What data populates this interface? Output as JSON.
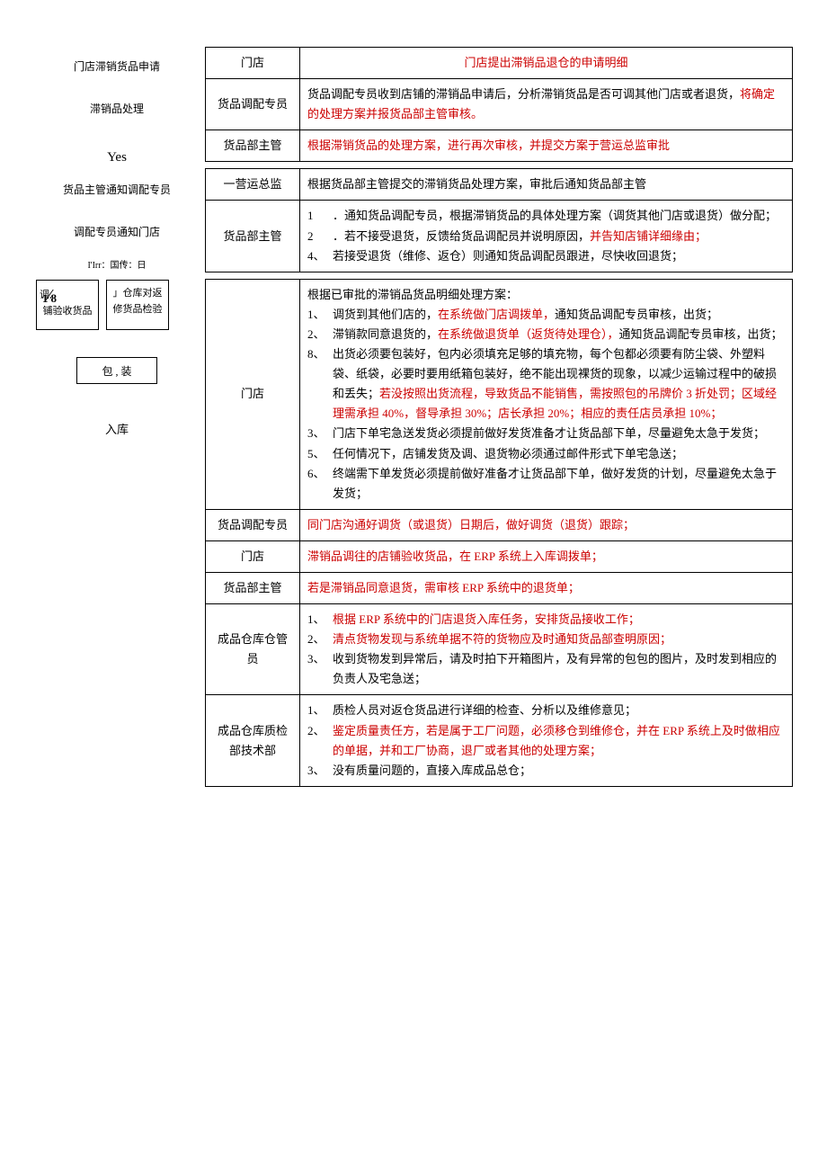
{
  "left": {
    "l1": "门店滞销货品申请",
    "l2": "滞销品处理",
    "yes": "Yes",
    "l3": "货品主管通知调配专员",
    "l4": "调配专员通知门店",
    "l5": "I'Irr：国传：日",
    "box1a": "调,",
    "box1b": "铺验收货品",
    "frac_n": "1",
    "frac_d": "8",
    "box2a": "」仓库对返",
    "box2b": "修货品检验",
    "box3": "包   , 装",
    "last": "入库"
  },
  "rows": [
    {
      "role": "门店",
      "center": true,
      "segs": [
        {
          "t": "门店提出滞销品退仓的申请明细",
          "c": "red"
        }
      ]
    },
    {
      "role": "货品调配专员",
      "segs": [
        {
          "t": "货品调配专员收到店铺的滞销品申请后，分析滞销货品是否可调其他门店或者退货，"
        },
        {
          "t": "将确定的处理方案并报货品部主管审核。",
          "c": "red"
        }
      ]
    },
    {
      "role": "货品部主管",
      "segs": [
        {
          "t": "根据滞销货品的处理方案，进行再次审核，并提交方案于营运总监审批",
          "c": "red"
        }
      ]
    },
    {
      "gap": true
    },
    {
      "role": "一营运总监",
      "segs": [
        {
          "t": "根据货品部主管提交的滞销货品处理方案，审批后通知货品部主管"
        }
      ]
    },
    {
      "role": "货品部主管",
      "list": [
        {
          "n": "1",
          "segs": [
            {
              "t": "．通知货品调配专员，根据滞销货品的具体处理方案（调货其他门店或退货）做分配；"
            }
          ]
        },
        {
          "n": "2",
          "segs": [
            {
              "t": "．若不接受退货，反馈给货品调配员并说明原因，"
            },
            {
              "t": "并告知店铺详细缘由；",
              "c": "red"
            }
          ]
        },
        {
          "n": "4、",
          "segs": [
            {
              "t": "若接受退货（维修、返仓）则通知货品调配员跟进，尽快收回退货；"
            }
          ]
        }
      ]
    },
    {
      "gap": true
    },
    {
      "role": "门店",
      "prefix_a": "A",
      "pre": "根据已审批的滞销品货品明细处理方案：",
      "list": [
        {
          "n": "1、",
          "segs": [
            {
              "t": "调货到其他们店的，"
            },
            {
              "t": "在系统做门店调拨单，",
              "c": "red"
            },
            {
              "t": "通知货品调配专员审核，出货；"
            }
          ]
        },
        {
          "n": "2、",
          "segs": [
            {
              "t": "滞销款同意退货的，"
            },
            {
              "t": "在系统做退货单（返货待处理仓），",
              "c": "red"
            },
            {
              "t": "通知货品调配专员审核，出货；"
            }
          ]
        },
        {
          "n": "8、",
          "segs": [
            {
              "t": "出货必须要包装好，包内必须填充足够的填充物，每个包都必须要有防尘袋、外塑料袋、纸袋，必要时要用纸箱包装好，绝不能出现裸货的现象，以减少运输过程中的破损和丢失；"
            },
            {
              "t": "若没按照出货流程，导致货品不能销售，需按照包的吊牌价 3 折处罚；区域经理需承担 40%，督导承担 30%；店长承担 20%；相应的责任店员承担 10%；",
              "c": "red"
            }
          ]
        },
        {
          "n": "3、",
          "segs": [
            {
              "t": "门店下单宅急送发货必须提前做好发货准备才让货品部下单，尽量避免太急于发货；"
            }
          ]
        },
        {
          "n": "5、",
          "segs": [
            {
              "t": "任何情况下，店铺发货及调、退货物必须通过邮件形式下单宅急送；"
            }
          ]
        },
        {
          "n": "6、",
          "segs": [
            {
              "t": "终端需下单发货必须提前做好准备才让货品部下单，做好发货的计划，尽量避免太急于发货；"
            }
          ]
        }
      ]
    },
    {
      "role": "货品调配专员",
      "segs": [
        {
          "t": "同门店沟通好调货（或退货）日期后，做好调货（退货）跟踪；",
          "c": "red"
        }
      ]
    },
    {
      "role": "门店",
      "segs": [
        {
          "t": "滞销品调往的店铺验收货品，在 ERP 系统上入库调拨单；",
          "c": "red"
        }
      ]
    },
    {
      "role": "货品部主管",
      "segs": [
        {
          "t": "若是滞销品同意退货，需审核 ERP 系统中的退货单；",
          "c": "red"
        }
      ]
    },
    {
      "role": "成品仓库仓管员",
      "list": [
        {
          "n": "1、",
          "segs": [
            {
              "t": "根据 ERP 系统中的门店退货入库任务，安排货品接收工作；",
              "c": "red"
            }
          ]
        },
        {
          "n": "2、",
          "segs": [
            {
              "t": "清点货物发现与系统单据不符的货物应及时通知货品部查明原因；",
              "c": "red"
            }
          ]
        },
        {
          "n": "3、",
          "segs": [
            {
              "t": "收到货物发到异常后，请及时拍下开箱图片，及有异常的包包的图片，及时发到相应的负责人及宅急送；"
            }
          ]
        }
      ]
    },
    {
      "role": "成品仓库质检部技术部",
      "list": [
        {
          "n": "1、",
          "segs": [
            {
              "t": "质检人员对返仓货品进行详细的检查、分析以及维修意见；"
            }
          ]
        },
        {
          "n": "2、",
          "segs": [
            {
              "t": "鉴定质量责任方，若是属于工厂问题，必须移仓到维修仓，并在 ERP 系统上及时做相应的单据，并和工厂协商，退厂或者其他的处理方案；",
              "c": "red"
            }
          ]
        },
        {
          "n": "3、",
          "segs": [
            {
              "t": "没有质量问题的，直接入库成品总仓；"
            }
          ]
        }
      ]
    }
  ]
}
